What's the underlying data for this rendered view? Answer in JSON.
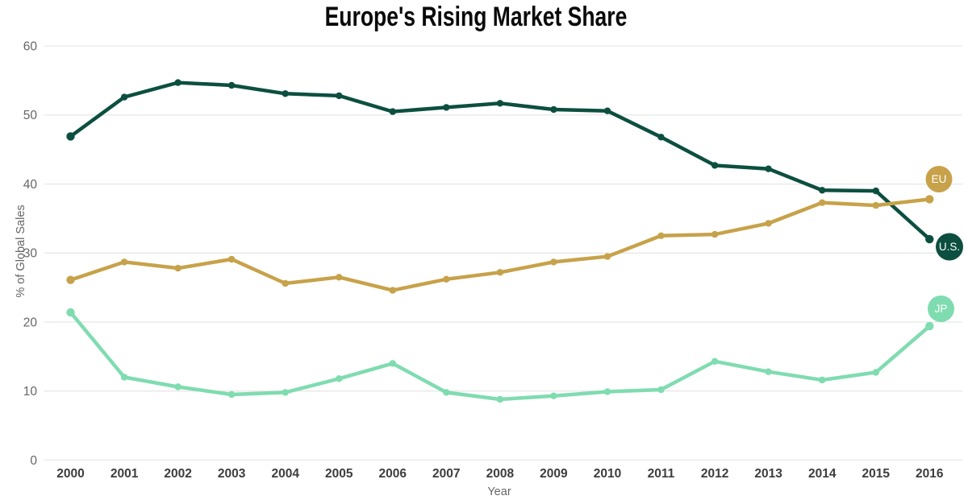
{
  "title": "Europe's Rising Market Share",
  "axes": {
    "x_label": "Year",
    "y_label": "% of Global Sales",
    "y_ticks": [
      0,
      10,
      20,
      30,
      40,
      50,
      60
    ],
    "ylim": [
      0,
      60
    ],
    "grid": "horizontal-only"
  },
  "legend": {
    "position": "right-edge-badges",
    "badges": [
      {
        "label": "EU",
        "color": "#c7a24a",
        "text_color": "#ffffff"
      },
      {
        "label": "U.S.",
        "color": "#0c4f40",
        "text_color": "#ffffff"
      },
      {
        "label": "JP",
        "color": "#7fdcb0",
        "text_color": "#ffffff"
      }
    ]
  },
  "colors": {
    "us_line": "#0c4f40",
    "eu_line": "#c7a24a",
    "jp_line": "#7fdcb0",
    "gridline": "#e8e8e8",
    "y_tick_text": "#666666",
    "x_tick_text": "#3d3d3d",
    "axis_title_text": "#666666",
    "title_text": "#0a0a0a",
    "background": "#ffffff"
  },
  "chart_data": {
    "type": "line",
    "title": "Europe's Rising Market Share",
    "xlabel": "Year",
    "ylabel": "% of Global Sales",
    "ylim": [
      0,
      60
    ],
    "y_ticks": [
      0,
      10,
      20,
      30,
      40,
      50,
      60
    ],
    "x": [
      2000,
      2001,
      2002,
      2003,
      2004,
      2005,
      2006,
      2007,
      2008,
      2009,
      2010,
      2011,
      2012,
      2013,
      2014,
      2015,
      2016
    ],
    "series": [
      {
        "name": "U.S.",
        "color": "#0c4f40",
        "values": [
          46.9,
          52.6,
          54.7,
          54.3,
          53.1,
          52.8,
          50.5,
          51.1,
          51.7,
          50.8,
          50.6,
          46.8,
          42.7,
          42.2,
          39.1,
          39.0,
          32.0
        ]
      },
      {
        "name": "EU",
        "color": "#c7a24a",
        "values": [
          26.1,
          28.7,
          27.8,
          29.1,
          25.6,
          26.5,
          24.6,
          26.2,
          27.2,
          28.7,
          29.5,
          32.5,
          32.7,
          34.3,
          37.3,
          36.9,
          37.8
        ]
      },
      {
        "name": "JP",
        "color": "#7fdcb0",
        "values": [
          21.4,
          12.0,
          10.6,
          9.5,
          9.8,
          11.8,
          14.0,
          9.8,
          8.8,
          9.3,
          9.9,
          10.2,
          14.3,
          12.8,
          11.6,
          12.7,
          19.4
        ]
      }
    ]
  }
}
